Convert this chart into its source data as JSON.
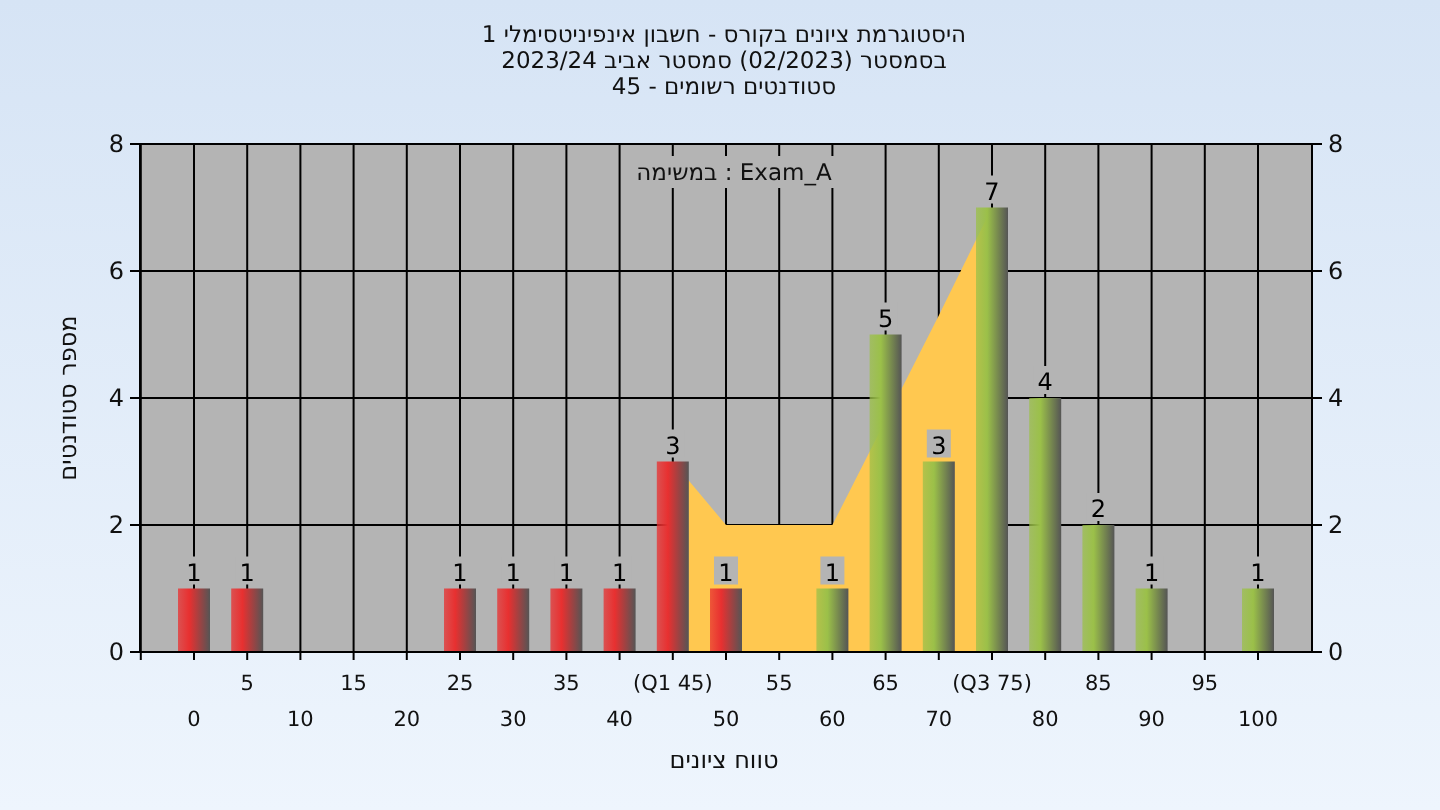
{
  "chart_data": {
    "type": "bar",
    "title": "היסטוגרמת ציונים בקורס - חשבון אינפיניטסימלי 1",
    "subtitle": "בסמסטר  (02/2023)  סמסטר אביב 2023/24\nסטודנטים רשומים - 45",
    "xlabel": "טווח ציונים",
    "ylabel": "מספר סטודנטים",
    "annotations": [
      "במשימה : Exam_A"
    ],
    "categories": [
      "0",
      "5",
      "10",
      "15",
      "20",
      "25",
      "30",
      "35",
      "40",
      "(Q1 45)",
      "50",
      "55",
      "60",
      "65",
      "70",
      "(Q3 75)",
      "80",
      "85",
      "90",
      "95",
      "100"
    ],
    "series": [
      {
        "type": "area",
        "color": "#ffc850",
        "values": [
          null,
          null,
          null,
          null,
          null,
          null,
          null,
          null,
          null,
          3,
          2,
          2,
          2,
          null,
          5.3,
          7,
          null,
          null,
          null,
          null,
          null
        ]
      },
      {
        "type": "bar",
        "colors": [
          "#e83030",
          "#e83030",
          "#e83030",
          "#e83030",
          "#e83030",
          "#e83030",
          "#e83030",
          "#e83030",
          "#e83030",
          "#e83030",
          "#e83030",
          "#9bc049",
          "#9bc049",
          "#9bc049",
          "#9bc049",
          "#9bc049",
          "#9bc049",
          "#9bc049",
          "#9bc049",
          "#9bc049",
          "#9bc049"
        ],
        "values": [
          1,
          1,
          0,
          0,
          0,
          1,
          1,
          1,
          1,
          3,
          1,
          0,
          1,
          5,
          3,
          7,
          4,
          2,
          1,
          0,
          1
        ],
        "value_labels": [
          "1",
          "1",
          null,
          null,
          null,
          "1",
          "1",
          "1",
          "1",
          "3",
          "1",
          null,
          "1",
          "5",
          "3",
          "7",
          "4",
          "2",
          "1",
          null,
          "1"
        ]
      }
    ],
    "ylim": [
      0,
      8
    ],
    "yticks": [
      0,
      2,
      4,
      6,
      8
    ],
    "y2lim": [
      0,
      8
    ],
    "y2ticks": [
      0,
      2,
      4,
      6,
      8
    ],
    "grid": true
  }
}
